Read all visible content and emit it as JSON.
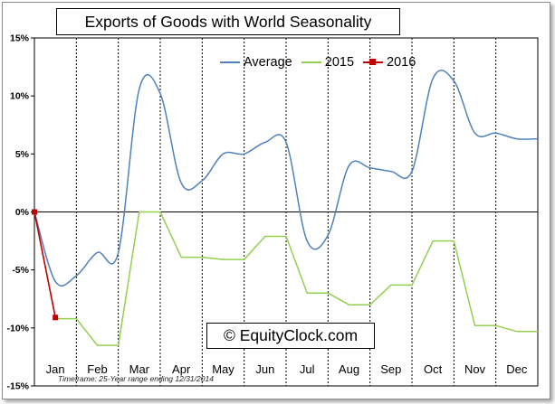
{
  "chart_data": {
    "type": "line",
    "title": "Exports of Goods with World Seasonality",
    "xlabel": "",
    "ylabel": "",
    "categories": [
      "Jan",
      "Feb",
      "Mar",
      "Apr",
      "May",
      "Jun",
      "Jul",
      "Aug",
      "Sep",
      "Oct",
      "Nov",
      "Dec"
    ],
    "ylim": [
      -15,
      15
    ],
    "y_ticks": [
      {
        "value": 15,
        "label": "15%"
      },
      {
        "value": 10,
        "label": "10%"
      },
      {
        "value": 5,
        "label": "5%"
      },
      {
        "value": 0,
        "label": "0%"
      },
      {
        "value": -5,
        "label": "-5%"
      },
      {
        "value": -10,
        "label": "-10%"
      },
      {
        "value": -15,
        "label": "-15%"
      }
    ],
    "series": [
      {
        "name": "Average",
        "color": "#4f81bd",
        "style": "smooth",
        "x": [
          0,
          0.5,
          1,
          1.5,
          2,
          2.5,
          3,
          3.5,
          4,
          4.5,
          5,
          5.5,
          6,
          6.5,
          7,
          7.5,
          8,
          8.5,
          9,
          9.5,
          10,
          10.5,
          11,
          11.5,
          12
        ],
        "values": [
          0.0,
          -6.0,
          -5.5,
          -3.5,
          -3.5,
          10.6,
          10.2,
          2.5,
          2.7,
          5.0,
          5.0,
          6.0,
          6.0,
          -2.5,
          -2.0,
          4.0,
          3.8,
          3.5,
          3.5,
          11.5,
          11.3,
          6.8,
          6.8,
          6.3,
          6.3
        ]
      },
      {
        "name": "2015",
        "color": "#92d050",
        "style": "straight",
        "x": [
          0.5,
          1,
          1.5,
          2,
          2.5,
          3,
          3.5,
          4,
          4.5,
          5,
          5.5,
          6,
          6.5,
          7,
          7.5,
          8,
          8.5,
          9,
          9.5,
          10,
          10.5,
          11,
          11.5,
          12
        ],
        "values": [
          -9.2,
          -9.2,
          -11.5,
          -11.5,
          0.0,
          0.0,
          -3.9,
          -3.9,
          -4.1,
          -4.1,
          -2.1,
          -2.1,
          -7.0,
          -7.0,
          -8.0,
          -8.0,
          -6.3,
          -6.3,
          -2.5,
          -2.5,
          -9.8,
          -9.8,
          -10.3,
          -10.3
        ]
      },
      {
        "name": "2016",
        "color": "#c00000",
        "style": "straight",
        "markers": true,
        "x": [
          0,
          0.5
        ],
        "values": [
          0.0,
          -9.1
        ]
      }
    ],
    "watermark": "© EquityClock.com",
    "footnote": "Timeframe: 25-Year range ending 12/31/2014"
  }
}
